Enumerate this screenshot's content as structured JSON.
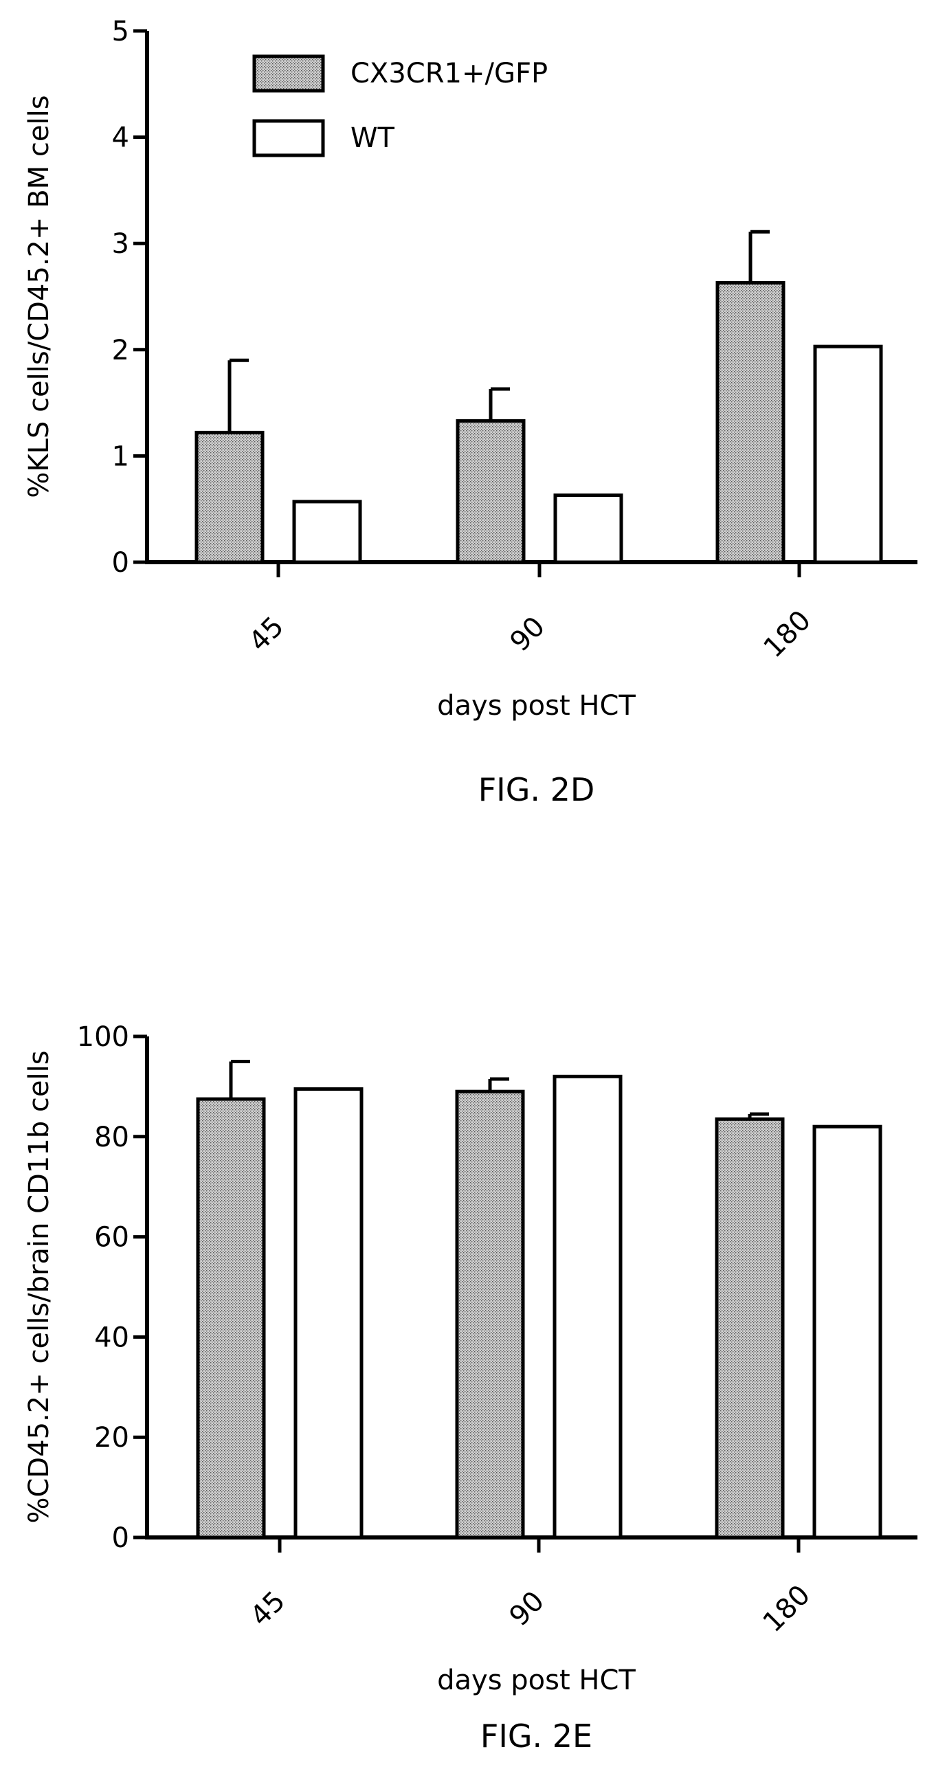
{
  "chart_data": [
    {
      "type": "bar",
      "caption": "FIG. 2D",
      "xlabel": "days post HCT",
      "ylabel": "%KLS cells/CD45.2+ BM cells",
      "categories": [
        "45",
        "90",
        "180"
      ],
      "ylim": [
        0,
        5
      ],
      "yticks": [
        "0",
        "1",
        "2",
        "3",
        "4",
        "5"
      ],
      "grid": false,
      "legend_position": "top-left",
      "series": [
        {
          "name": "CX3CR1+/GFP",
          "fill": "stippled-gray",
          "values": [
            1.22,
            1.33,
            2.63
          ],
          "error": [
            0.68,
            0.3,
            0.48
          ]
        },
        {
          "name": "WT",
          "fill": "white",
          "values": [
            0.57,
            0.63,
            2.03
          ],
          "error": [
            0,
            0,
            0
          ]
        }
      ]
    },
    {
      "type": "bar",
      "caption": "FIG. 2E",
      "xlabel": "days post HCT",
      "ylabel": "%CD45.2+ cells/brain CD11b cells",
      "categories": [
        "45",
        "90",
        "180"
      ],
      "ylim": [
        0,
        100
      ],
      "yticks": [
        "0",
        "20",
        "40",
        "60",
        "80",
        "100"
      ],
      "grid": false,
      "series": [
        {
          "name": "CX3CR1+/GFP",
          "fill": "stippled-gray",
          "values": [
            87.5,
            89,
            83.5
          ],
          "error": [
            7.5,
            2.5,
            1
          ]
        },
        {
          "name": "WT",
          "fill": "white",
          "values": [
            89.5,
            92,
            82
          ],
          "error": [
            0,
            0,
            0
          ]
        }
      ]
    }
  ]
}
